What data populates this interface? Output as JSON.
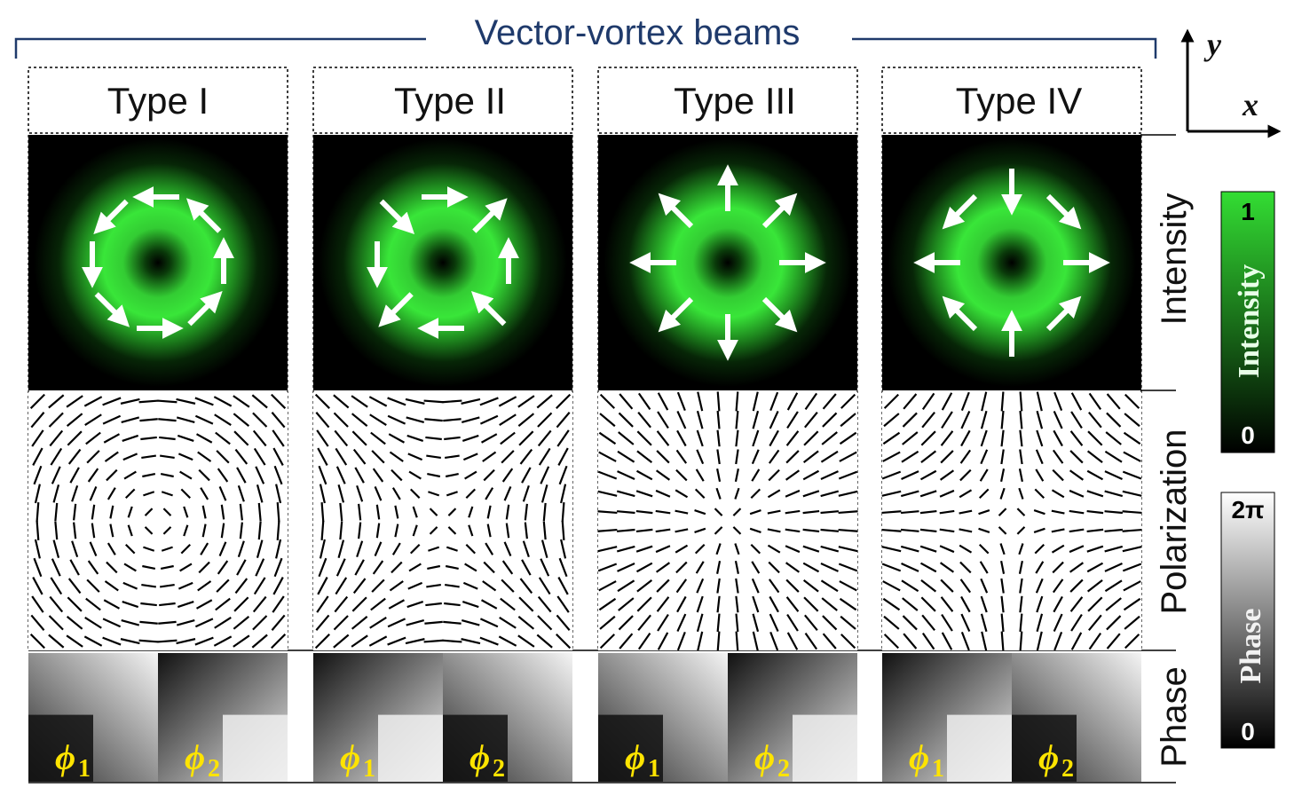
{
  "title": "Vector-vortex beams",
  "axes": {
    "y": "y",
    "x": "x"
  },
  "rows": [
    "Intensity",
    "Polarization",
    "Phase"
  ],
  "types": [
    {
      "label": "Type I",
      "pattern": "azimuthal-ccw"
    },
    {
      "label": "Type II",
      "pattern": "hyperbolic"
    },
    {
      "label": "Type III",
      "pattern": "radial"
    },
    {
      "label": "Type IV",
      "pattern": "anti-radial"
    }
  ],
  "phase_labels": {
    "phi": "ϕ",
    "sub1": "1",
    "sub2": "2"
  },
  "colorbars": {
    "intensity": {
      "title": "Intensity",
      "max": "1",
      "min": "0",
      "color_top": "#33dd33",
      "color_bottom": "#000000"
    },
    "phase": {
      "title": "Phase",
      "max": "2π",
      "min": "0",
      "color_top": "#ffffff",
      "color_bottom": "#000000"
    }
  },
  "colors": {
    "beam": "#39e639",
    "title": "#1f3a6b",
    "phi": "#ffe400"
  }
}
